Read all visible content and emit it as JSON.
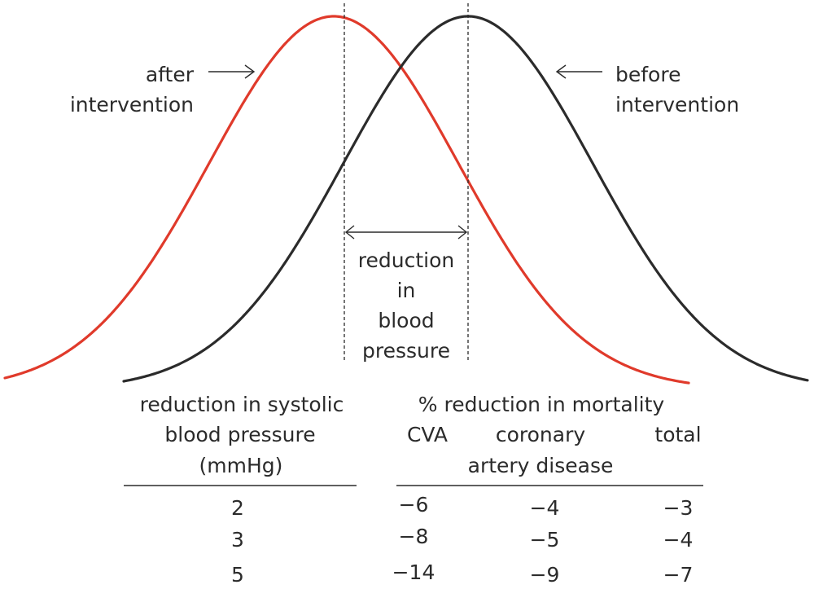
{
  "curves": {
    "before": {
      "label_line1": "before",
      "label_line2": "intervention",
      "color": "#2b2b2b"
    },
    "after": {
      "label_line1": "after",
      "label_line2": "intervention",
      "color": "#e03a2b"
    }
  },
  "shift_label": {
    "line1": "reduction",
    "line2": "in",
    "line3": "blood",
    "line4": "pressure"
  },
  "table": {
    "left_header": {
      "line1": "reduction in systolic",
      "line2": "blood pressure",
      "line3": "(mmHg)"
    },
    "right_header": {
      "title": "% reduction in mortality",
      "col1": "CVA",
      "col2_line1": "coronary",
      "col2_line2": "artery disease",
      "col3": "total"
    },
    "rows": [
      {
        "bp": "2",
        "cva": "−6",
        "coronary": "−4",
        "total": "−3"
      },
      {
        "bp": "3",
        "cva": "−8",
        "coronary": "−5",
        "total": "−4"
      },
      {
        "bp": "5",
        "cva": "−14",
        "coronary": "−9",
        "total": "−7"
      }
    ]
  }
}
